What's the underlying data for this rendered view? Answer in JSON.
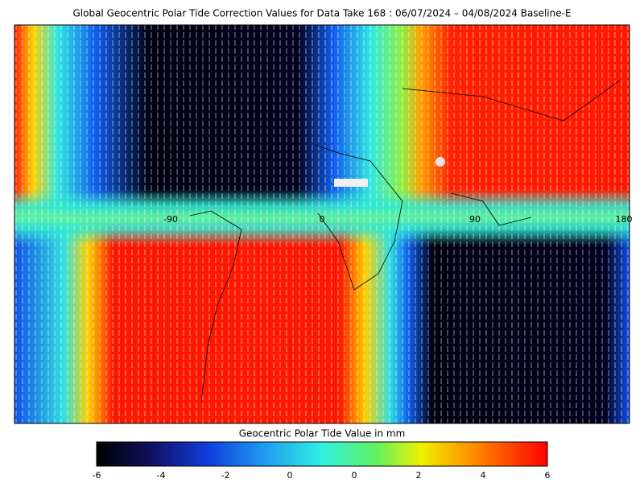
{
  "title": "Global Geocentric Polar Tide Correction Values for Data Take 168 : 06/07/2024 – 04/08/2024 Baseline-E",
  "map": {
    "lon_labels": [
      "-90",
      "0",
      "90",
      "180"
    ]
  },
  "colorbar": {
    "label": "Geocentric Polar Tide Value in mm",
    "ticks": [
      "-6",
      "-4",
      "-2",
      "0",
      "0",
      "2",
      "4",
      "6"
    ]
  }
}
